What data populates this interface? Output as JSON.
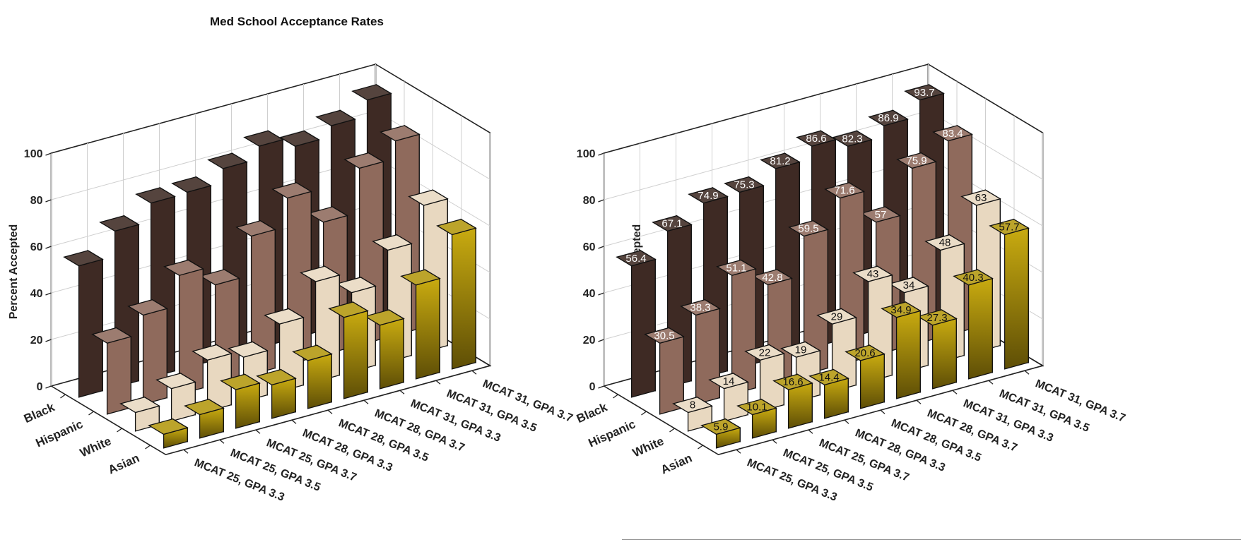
{
  "chart_data": [
    {
      "type": "bar",
      "title": "Med School Acceptance Rates",
      "ylabel": "Percent Accepted",
      "ylim": [
        0,
        100
      ],
      "yticks": [
        "0",
        "20",
        "40",
        "60",
        "80",
        "100"
      ],
      "categories": [
        "MCAT 25, GPA 3.3",
        "MCAT 25, GPA 3.5",
        "MCAT 25, GPA 3.7",
        "MCAT 28, GPA 3.3",
        "MCAT 28, GPA 3.5",
        "MCAT 28, GPA 3.7",
        "MCAT 31, GPA 3.3",
        "MCAT 31, GPA 3.5",
        "MCAT 31, GPA 3.7"
      ],
      "series": [
        {
          "name": "Black",
          "values": [
            56.4,
            67.1,
            74.9,
            75.3,
            81.2,
            86.6,
            82.3,
            86.9,
            93.7
          ]
        },
        {
          "name": "Hispanic",
          "values": [
            30.5,
            38.3,
            51.1,
            42.8,
            59.5,
            71.6,
            57,
            75.9,
            83.4
          ]
        },
        {
          "name": "White",
          "values": [
            8,
            14,
            22,
            19,
            29,
            43,
            34,
            48,
            63
          ]
        },
        {
          "name": "Asian",
          "values": [
            5.9,
            10.1,
            16.6,
            14.4,
            20.6,
            34.9,
            27.3,
            40.3,
            57.7
          ]
        }
      ],
      "data_labels": false,
      "grid": true,
      "colors": [
        "#3e2a24",
        "#8f6a5c",
        "#e8d8c0",
        "#b3980e"
      ]
    },
    {
      "type": "bar",
      "title": "",
      "ylabel": "Percent Accepted",
      "ylim": [
        0,
        100
      ],
      "yticks": [
        "0",
        "20",
        "40",
        "60",
        "80",
        "100"
      ],
      "categories": [
        "MCAT 25, GPA 3.3",
        "MCAT 25, GPA 3.5",
        "MCAT 25, GPA 3.7",
        "MCAT 28, GPA 3.3",
        "MCAT 28, GPA 3.5",
        "MCAT 28, GPA 3.7",
        "MCAT 31, GPA 3.3",
        "MCAT 31, GPA 3.5",
        "MCAT 31, GPA 3.7"
      ],
      "series": [
        {
          "name": "Black",
          "values": [
            56.4,
            67.1,
            74.9,
            75.3,
            81.2,
            86.6,
            82.3,
            86.9,
            93.7
          ]
        },
        {
          "name": "Hispanic",
          "values": [
            30.5,
            38.3,
            51.1,
            42.8,
            59.5,
            71.6,
            57,
            75.9,
            83.4
          ]
        },
        {
          "name": "White",
          "values": [
            8,
            14,
            22,
            19,
            29,
            43,
            34,
            48,
            63
          ]
        },
        {
          "name": "Asian",
          "values": [
            5.9,
            10.1,
            16.6,
            14.4,
            20.6,
            34.9,
            27.3,
            40.3,
            57.7
          ]
        }
      ],
      "data_labels": true,
      "grid": true,
      "colors": [
        "#3e2a24",
        "#8f6a5c",
        "#e8d8c0",
        "#b3980e"
      ]
    }
  ]
}
